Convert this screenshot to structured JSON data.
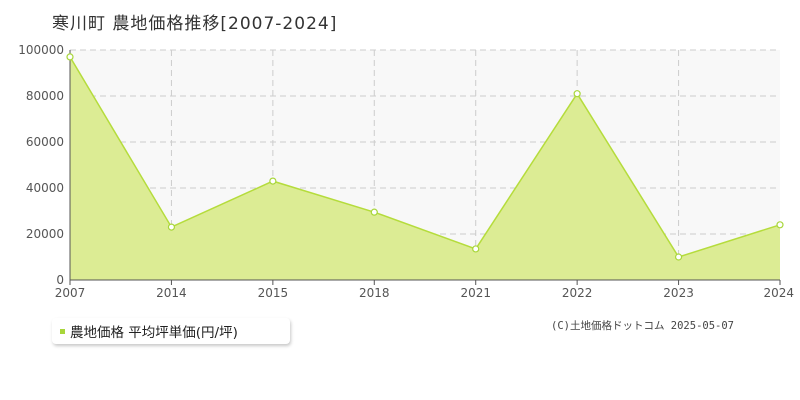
{
  "title": "寒川町 農地価格推移[2007-2024]",
  "legend_label": "農地価格 平均坪単価(円/坪)",
  "copyright": "(C)土地価格ドットコム 2025-05-07",
  "colors": {
    "fill": "#dcec94",
    "line": "#b5dc3c",
    "marker": "#a8d63a",
    "plot_bg": "#f8f8f8",
    "grid": "#cccccc"
  },
  "chart_data": {
    "type": "area",
    "title": "寒川町 農地価格推移[2007-2024]",
    "x": [
      "2007",
      "2014",
      "2015",
      "2018",
      "2021",
      "2022",
      "2023",
      "2024"
    ],
    "series": [
      {
        "name": "農地価格 平均坪単価(円/坪)",
        "values": [
          97000,
          23000,
          43000,
          29500,
          13500,
          81000,
          10000,
          24000
        ]
      }
    ],
    "yticks": [
      "0",
      "20000",
      "40000",
      "60000",
      "80000",
      "100000"
    ],
    "ylim": [
      0,
      100000
    ],
    "grid": true,
    "legend": "bottom-left"
  }
}
